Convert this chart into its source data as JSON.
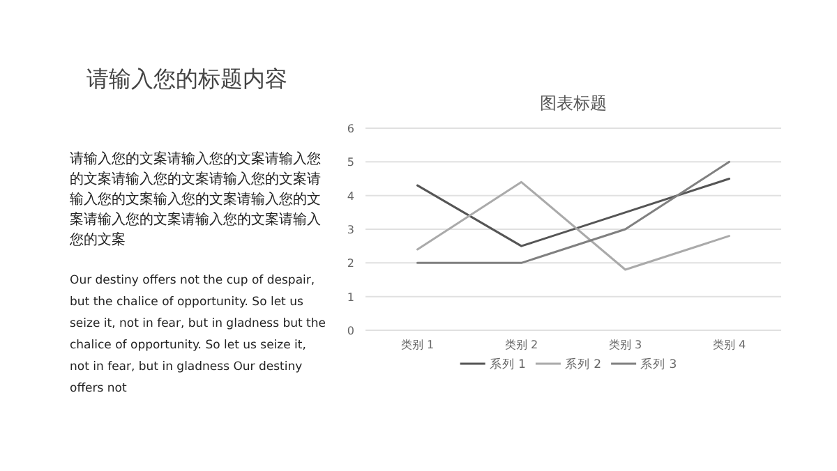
{
  "chart_data": {
    "type": "line",
    "title": "图表标题",
    "annotations": [
      "请输入您的标题内容",
      "请输入您的文案请输入您的文案请输入您的文案请输入您的文案请输入您的文案请输入您的文案输入您的文案请输入您的文案请输入您的文案请输入您的文案请输入您的文案",
      "Our destiny offers not the cup of despair, but the chalice of opportunity. So let us seize it, not in fear, but in gladness but the chalice of opportunity. So let us seize it, not in fear, but in gladness Our destiny offers not"
    ],
    "categories": [
      "类别 1",
      "类别 2",
      "类别 3",
      "类别 4"
    ],
    "series": [
      {
        "name": "系列 1",
        "color": "#555555",
        "values": [
          4.3,
          2.5,
          3.5,
          4.5
        ]
      },
      {
        "name": "系列 2",
        "color": "#aaaaaa",
        "values": [
          2.4,
          4.4,
          1.8,
          2.8
        ]
      },
      {
        "name": "系列 3",
        "color": "#808080",
        "values": [
          2,
          2,
          3,
          5
        ]
      }
    ],
    "ylim": [
      0,
      6
    ],
    "yticks": [
      0,
      1,
      2,
      3,
      4,
      5,
      6
    ],
    "grid": "y",
    "legend": "bottom"
  }
}
